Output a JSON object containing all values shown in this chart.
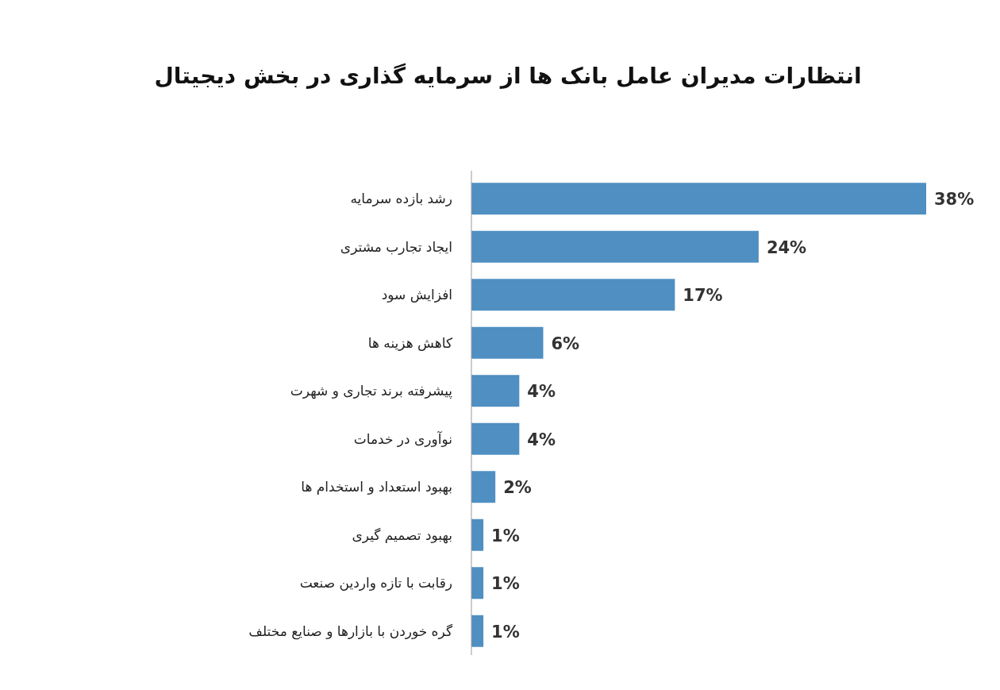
{
  "chart_data": {
    "type": "bar",
    "orientation": "horizontal",
    "title": "انتظارات مدیران عامل بانک ها از سرمایه گذاری در بخش دیجیتال",
    "categories": [
      "رشد بازده سرمایه",
      "ایجاد تجارب مشتری",
      "افزایش سود",
      "کاهش هزینه ها",
      "پیشرفته برند تجاری و شهرت",
      "نوآوری در خدمات",
      "بهبود استعداد و استخدام ها",
      "بهبود تصمیم گیری",
      "رقابت با تازه واردین صنعت",
      "گره خوردن با بازارها و صنایع مختلف"
    ],
    "values": [
      38,
      24,
      17,
      6,
      4,
      4,
      2,
      1,
      1,
      1
    ],
    "value_labels": [
      "38%",
      "24%",
      "17%",
      "6%",
      "4%",
      "4%",
      "2%",
      "1%",
      "1%",
      "1%"
    ],
    "color": "#4f8fc2"
  }
}
